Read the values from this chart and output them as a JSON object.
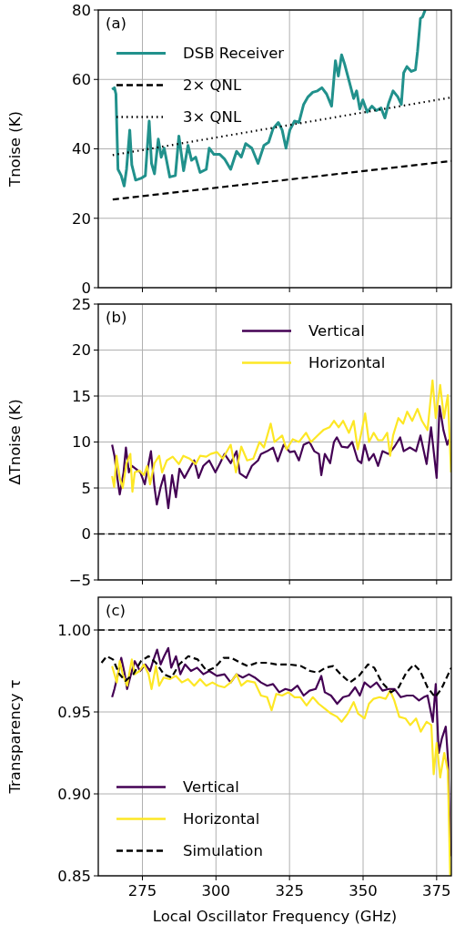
{
  "chart_data": [
    {
      "type": "line",
      "annotations": [
        "(a)"
      ],
      "ylabel": "Tnoise (K)",
      "xlim": [
        260,
        380
      ],
      "xticks": [
        275,
        300,
        325,
        350,
        375
      ],
      "ylim": [
        0,
        80
      ],
      "yticks": [
        0,
        20,
        40,
        60,
        80
      ],
      "grid": true,
      "legend": "top left",
      "tick_labels": "y",
      "series": [
        {
          "name": "DSB Receiver",
          "color": "#21918c",
          "x": [
            264.7,
            265.5,
            266,
            266.7,
            267.8,
            268.8,
            269.6,
            270.7,
            271.4,
            272.7,
            274.5,
            276,
            277.3,
            278.1,
            279.1,
            280.4,
            281.4,
            282.4,
            284.3,
            286.2,
            287.4,
            289,
            290.5,
            291.7,
            293.1,
            294.6,
            296.7,
            297.7,
            299.3,
            301.3,
            302.9,
            305,
            307,
            308.6,
            310.1,
            312.2,
            314.3,
            316.3,
            317.9,
            319.4,
            321.2,
            322.5,
            323.8,
            325.1,
            326.7,
            328.2,
            329.8,
            331.3,
            332.9,
            334.5,
            336,
            337.6,
            339.3,
            340.6,
            341.6,
            342.7,
            343.7,
            345.2,
            346.8,
            347.8,
            348.9,
            349.9,
            351.4,
            353,
            354.5,
            356.1,
            357.4,
            358.7,
            360.2,
            361.8,
            363,
            363.8,
            364.9,
            366.4,
            367.8,
            368.5,
            369.5,
            370.2,
            371.1
          ],
          "values": [
            57.1,
            57.6,
            55.8,
            34.1,
            32.3,
            29.3,
            34.1,
            45.4,
            35.4,
            31,
            31.5,
            32.3,
            48,
            35.8,
            32.8,
            42.8,
            37.6,
            40.2,
            31.9,
            32.3,
            43.7,
            33.7,
            41,
            36.7,
            37.6,
            33.2,
            34.1,
            40.2,
            38.4,
            38.4,
            37.1,
            34.1,
            39.3,
            37.6,
            41.5,
            40.2,
            35.8,
            41,
            41.9,
            45.8,
            47.6,
            45.4,
            40.2,
            45.4,
            48,
            47.6,
            52.8,
            55,
            56.3,
            56.7,
            57.6,
            55.8,
            52.3,
            65.4,
            61,
            67.1,
            64.5,
            59.7,
            54.5,
            56.7,
            51.5,
            54.1,
            50.6,
            52.3,
            51,
            51.8,
            48.9,
            53.2,
            56.7,
            55,
            52.8,
            61.9,
            63.7,
            62.3,
            62.8,
            68,
            77.6,
            78,
            80
          ]
        },
        {
          "name": "2× QNL",
          "color": "#000000",
          "line_style": "dashed",
          "x": [
            264.9,
            380
          ],
          "values": [
            25.4,
            36.5
          ]
        },
        {
          "name": "3× QNL",
          "color": "#000000",
          "line_style": "dotted",
          "x": [
            264.9,
            380
          ],
          "values": [
            38.2,
            54.8
          ]
        }
      ]
    },
    {
      "type": "line",
      "annotations": [
        "(b)"
      ],
      "ylabel": "ΔTnoise (K)",
      "xlim": [
        260,
        380
      ],
      "xticks": [
        275,
        300,
        325,
        350,
        375
      ],
      "ylim": [
        -5,
        25
      ],
      "yticks": [
        {
          "value": -5,
          "label": "−5"
        },
        0,
        5,
        10,
        15,
        20,
        25
      ],
      "grid": true,
      "legend": "top right",
      "tick_labels": "y",
      "ref_lines": [
        {
          "axis": "y",
          "value": 0,
          "color": "#000000",
          "line_style": "dashed"
        }
      ],
      "series": [
        {
          "name": "Vertical",
          "color": "#440154",
          "x": [
            264.7,
            265.5,
            266.2,
            267.3,
            268.6,
            269.4,
            270.4,
            271.4,
            272.7,
            274.3,
            275.8,
            277.9,
            279.1,
            279.9,
            281.2,
            282.4,
            283.8,
            285.1,
            286.4,
            287.6,
            289.3,
            291,
            292.6,
            294.1,
            295.7,
            297.7,
            299.8,
            301.4,
            302.9,
            305,
            307,
            308.1,
            310.3,
            312.2,
            314.3,
            315.3,
            317.4,
            319.4,
            321,
            323,
            325.1,
            326.7,
            328.2,
            329.8,
            331.8,
            333.4,
            335,
            335.8,
            337,
            338.8,
            340.1,
            341.1,
            342.7,
            344.8,
            346.3,
            348.2,
            349.4,
            350.5,
            352,
            353.6,
            355.1,
            356.6,
            358.7,
            360.7,
            362.6,
            363.8,
            365.9,
            368,
            369.5,
            371.6,
            373.1,
            375,
            376,
            377.3,
            378.6,
            379.3
          ],
          "values": [
            9.7,
            8.5,
            6.7,
            4.3,
            6.7,
            9.4,
            6.7,
            7.4,
            7.1,
            6.7,
            5.4,
            9,
            5.1,
            3.2,
            5.1,
            6.4,
            2.8,
            6.4,
            4,
            7.1,
            6.1,
            7.1,
            8,
            6.1,
            7.4,
            8,
            6.7,
            7.7,
            8.7,
            7.7,
            9,
            6.6,
            6.1,
            7.4,
            8,
            8.7,
            9,
            9.4,
            7.9,
            9.7,
            8.9,
            9,
            8,
            9.7,
            10,
            9,
            8.7,
            6.4,
            8.7,
            7.7,
            10,
            10.5,
            9.5,
            9.4,
            10,
            8,
            7.7,
            9.7,
            8,
            8.7,
            7.4,
            9,
            8.7,
            9.5,
            10.5,
            9,
            9.4,
            9,
            10.7,
            7.6,
            11.6,
            6.1,
            13.9,
            11.3,
            9.7,
            10.3
          ]
        },
        {
          "name": "Horizontal",
          "color": "#fde725",
          "x": [
            264.7,
            265.4,
            266.2,
            267.3,
            268.3,
            269.6,
            270.9,
            271.6,
            272.4,
            274,
            275.5,
            276.6,
            277.6,
            279.1,
            280.7,
            281.7,
            283.3,
            285.3,
            287.4,
            288.9,
            291,
            293.1,
            294.6,
            296.7,
            298.2,
            300.3,
            302.3,
            305,
            306.8,
            308.6,
            310.6,
            312.7,
            314.8,
            316.3,
            318.6,
            319.9,
            322.5,
            324,
            326.1,
            328.2,
            330.6,
            332.3,
            334.5,
            336.5,
            338.6,
            340.1,
            341.7,
            343.2,
            345.2,
            346.8,
            348.2,
            349.4,
            350.7,
            352,
            353.6,
            355.1,
            356.6,
            358.2,
            359.2,
            360.2,
            362,
            363.6,
            365,
            366.7,
            368.5,
            370,
            371.9,
            373.6,
            374.7,
            376.2,
            377.5,
            378.8,
            379.9
          ],
          "values": [
            6.3,
            5.1,
            8.5,
            6.1,
            5,
            7.7,
            8.7,
            4.6,
            6.7,
            6.9,
            6.4,
            7.4,
            5.4,
            7.7,
            8.5,
            6.7,
            8,
            8.4,
            7.6,
            8.5,
            8.2,
            7.6,
            8.5,
            8.4,
            8.7,
            8.9,
            8.2,
            9.7,
            6.7,
            9.5,
            8,
            8.2,
            10,
            9.4,
            12,
            10,
            10.7,
            9.2,
            10.3,
            10,
            11,
            10,
            10.7,
            11.3,
            11.6,
            12.3,
            11.6,
            12.3,
            11,
            12.3,
            9.2,
            11,
            13.1,
            10,
            11,
            10.2,
            10.2,
            11,
            8.5,
            10.7,
            12.6,
            12,
            13.3,
            12.3,
            13.6,
            12.3,
            11.3,
            16.7,
            12.6,
            16.2,
            12.6,
            15.1,
            6.7
          ]
        }
      ]
    },
    {
      "type": "line",
      "annotations": [
        "(c)"
      ],
      "xlabel": "Local Oscillator Frequency (GHz)",
      "ylabel": "Transparency τ",
      "xlim": [
        260,
        380
      ],
      "xticks": [
        275,
        300,
        325,
        350,
        375
      ],
      "ylim": [
        0.85,
        1.02
      ],
      "yticks": [
        {
          "value": 0.85,
          "label": "0.85"
        },
        {
          "value": 0.9,
          "label": "0.90"
        },
        {
          "value": 0.95,
          "label": "0.95"
        },
        {
          "value": 1,
          "label": "1.00"
        }
      ],
      "grid": true,
      "legend": "bottom left",
      "ref_lines": [
        {
          "axis": "y",
          "value": 1,
          "color": "#000000",
          "line_style": "dashed"
        }
      ],
      "series": [
        {
          "name": "Vertical",
          "color": "#440154",
          "x": [
            264.7,
            265.5,
            266.7,
            267.8,
            269,
            269.8,
            271.1,
            272.4,
            274.2,
            276,
            277.6,
            278.6,
            280,
            281.2,
            282.4,
            283.8,
            284.8,
            286.4,
            287.9,
            289.5,
            291.5,
            293.6,
            295.7,
            297.7,
            300.3,
            302.9,
            305,
            307,
            309.1,
            311.2,
            313.2,
            315.3,
            317.4,
            319.4,
            321.5,
            323.6,
            325.6,
            327.7,
            329.8,
            331.8,
            333.9,
            335.8,
            337,
            339.1,
            341.2,
            343.2,
            345.2,
            347.3,
            348.9,
            350.5,
            352.5,
            354.6,
            356.6,
            358.7,
            360.7,
            362.8,
            364.9,
            367,
            369,
            370.6,
            371.9,
            373.7,
            374.7,
            375.7,
            376.8,
            378.1,
            378.9,
            379.7
          ],
          "values": [
            0.959,
            0.964,
            0.973,
            0.983,
            0.973,
            0.964,
            0.973,
            0.981,
            0.975,
            0.979,
            0.975,
            0.981,
            0.988,
            0.979,
            0.984,
            0.989,
            0.977,
            0.984,
            0.973,
            0.979,
            0.975,
            0.977,
            0.973,
            0.975,
            0.972,
            0.973,
            0.968,
            0.973,
            0.971,
            0.973,
            0.971,
            0.968,
            0.966,
            0.967,
            0.962,
            0.964,
            0.963,
            0.966,
            0.96,
            0.963,
            0.964,
            0.972,
            0.962,
            0.96,
            0.955,
            0.959,
            0.96,
            0.965,
            0.96,
            0.968,
            0.965,
            0.968,
            0.963,
            0.964,
            0.964,
            0.959,
            0.96,
            0.96,
            0.957,
            0.959,
            0.96,
            0.944,
            0.967,
            0.925,
            0.934,
            0.941,
            0.92,
            0.862
          ]
        },
        {
          "name": "Horizontal",
          "color": "#fde725",
          "x": [
            264.7,
            265.5,
            266.3,
            267.3,
            268.3,
            269.8,
            271.4,
            272.4,
            274,
            275.5,
            277.1,
            278.1,
            279.6,
            280.7,
            282.2,
            284.3,
            286.4,
            288.4,
            290.5,
            292.6,
            294.6,
            296.7,
            298.8,
            300.8,
            302.9,
            305,
            307,
            308.6,
            310.6,
            313.2,
            315.3,
            317.4,
            318.9,
            320.5,
            322.5,
            324.6,
            326.7,
            328.7,
            330.8,
            332.9,
            334.9,
            337,
            339.1,
            341.2,
            342.7,
            344.8,
            346.8,
            348.3,
            350.5,
            352,
            353.6,
            355.6,
            357.7,
            359.2,
            360.6,
            362.3,
            364.4,
            366,
            368,
            369.6,
            371.6,
            373.2,
            374,
            375,
            376.2,
            377.6,
            378.8,
            379.6
          ],
          "values": [
            0.978,
            0.973,
            0.968,
            0.981,
            0.973,
            0.966,
            0.982,
            0.973,
            0.975,
            0.979,
            0.973,
            0.964,
            0.978,
            0.966,
            0.971,
            0.97,
            0.972,
            0.968,
            0.97,
            0.966,
            0.97,
            0.966,
            0.968,
            0.966,
            0.965,
            0.968,
            0.973,
            0.966,
            0.969,
            0.968,
            0.96,
            0.959,
            0.951,
            0.961,
            0.96,
            0.962,
            0.959,
            0.959,
            0.954,
            0.959,
            0.955,
            0.952,
            0.949,
            0.947,
            0.944,
            0.949,
            0.956,
            0.949,
            0.946,
            0.955,
            0.958,
            0.959,
            0.958,
            0.963,
            0.957,
            0.947,
            0.946,
            0.942,
            0.946,
            0.938,
            0.944,
            0.942,
            0.912,
            0.931,
            0.91,
            0.925,
            0.914,
            0.85
          ]
        },
        {
          "name": "Simulation",
          "color": "#000000",
          "line_style": "dashed",
          "x": [
            261.1,
            262.9,
            265,
            267.2,
            269.2,
            271.9,
            274.5,
            277.1,
            279.6,
            282.3,
            284.9,
            287.5,
            290.6,
            293.8,
            296.9,
            299.5,
            302.6,
            305.2,
            308.3,
            310.8,
            313.9,
            317.5,
            320.6,
            324.8,
            328.9,
            332,
            334.6,
            337.2,
            339.8,
            342.4,
            345.5,
            348.6,
            351.7,
            353.8,
            356.4,
            359.5,
            362.1,
            364.7,
            367.3,
            369.4,
            371.9,
            374.5,
            376.6,
            379.2,
            380
          ],
          "values": [
            0.98,
            0.984,
            0.982,
            0.973,
            0.969,
            0.973,
            0.981,
            0.984,
            0.98,
            0.973,
            0.971,
            0.979,
            0.984,
            0.982,
            0.975,
            0.977,
            0.983,
            0.983,
            0.98,
            0.978,
            0.98,
            0.98,
            0.979,
            0.979,
            0.978,
            0.975,
            0.974,
            0.977,
            0.978,
            0.973,
            0.968,
            0.972,
            0.979,
            0.977,
            0.968,
            0.962,
            0.965,
            0.974,
            0.979,
            0.975,
            0.965,
            0.959,
            0.964,
            0.974,
            0.977
          ]
        }
      ]
    }
  ]
}
